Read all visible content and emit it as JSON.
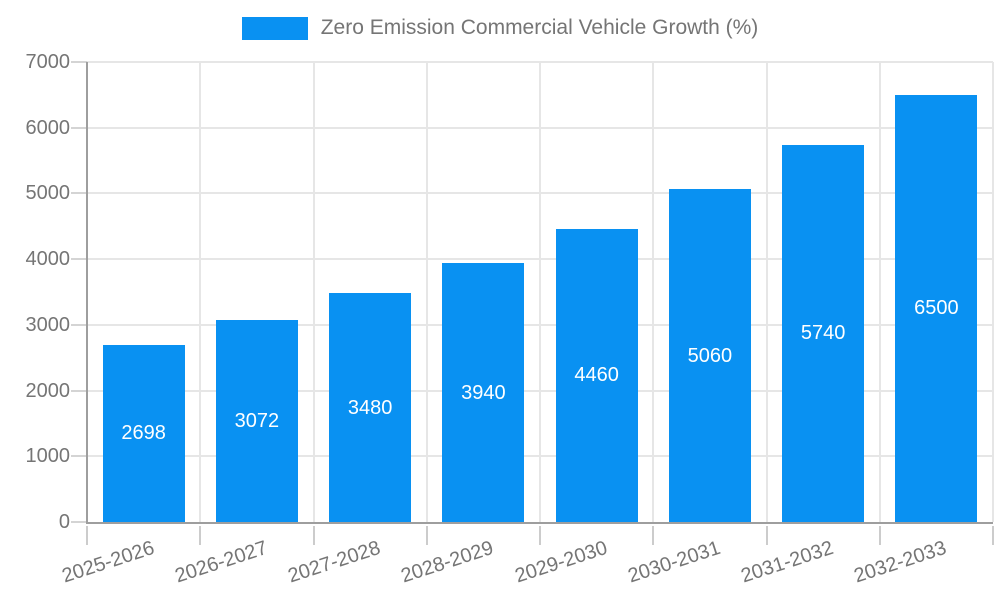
{
  "chart_data": {
    "type": "bar",
    "title": "",
    "legend_label": "Zero Emission Commercial Vehicle Growth (%)",
    "legend_position": "top-center",
    "categories": [
      "2025-2026",
      "2026-2027",
      "2027-2028",
      "2028-2029",
      "2029-2030",
      "2030-2031",
      "2031-2032",
      "2032-2033"
    ],
    "values": [
      2698,
      3072,
      3480,
      3940,
      4460,
      5060,
      5740,
      6500
    ],
    "xlabel": "",
    "ylabel": "",
    "ylim": [
      0,
      7000
    ],
    "ytick_step": 1000,
    "yticks": [
      0,
      1000,
      2000,
      3000,
      4000,
      5000,
      6000,
      7000
    ],
    "grid": true,
    "value_labels": "centered-inside-bars",
    "colors": {
      "bar": "#0991f2",
      "value_label": "#ffffff",
      "tick_label": "#757575",
      "legend_text": "#757575",
      "gridline": "#e6e6e6",
      "axis_line": "#9e9e9e",
      "tick_mark": "#cccccc",
      "background": "#ffffff"
    }
  }
}
